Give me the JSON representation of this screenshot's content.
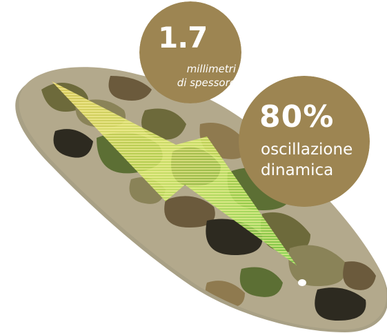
{
  "colors": {
    "badge_gold": "#9d8552",
    "badge_text": "#ffffff",
    "camo_base": "#b3a98c",
    "camo_olive": "#6d6a3b",
    "camo_brown": "#6b5a3c",
    "camo_dark": "#2d2a20",
    "camo_green": "#5c6f34",
    "arrow_green": "#7fdc4a",
    "arrow_yellow": "#f4e066"
  },
  "thickness_badge": {
    "value": "1.7",
    "line1": "millimetri",
    "line2": "di spessore"
  },
  "oscillation_badge": {
    "value": "80%",
    "line1": "oscillazione",
    "line2": "dinamica"
  },
  "illustration": {
    "subject": "insole-camo",
    "arrow_icon": "arrow-down-right-icon"
  }
}
